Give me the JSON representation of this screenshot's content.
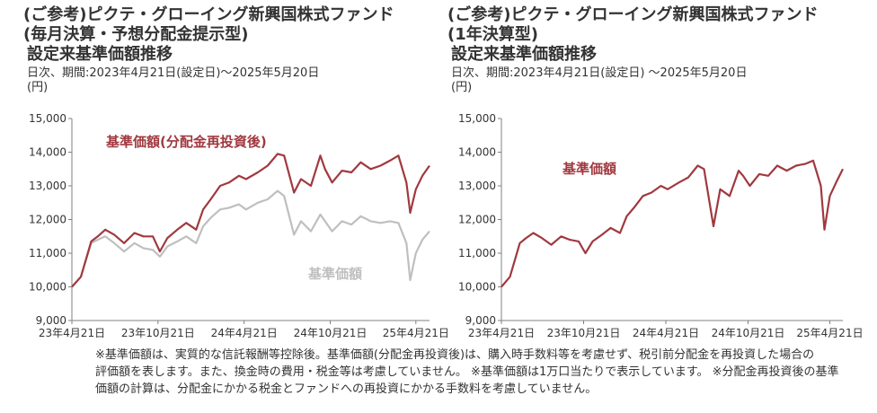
{
  "left": {
    "title1": "(ご参考)ピクテ・グローイング新興国株式ファンド",
    "title2": "(毎月決算・予想分配金提示型)",
    "title3": "設定来基準価額推移",
    "period": "日次、期間:2023年4月21日(設定日)～2025年5月20日",
    "unit": "(円)"
  },
  "right": {
    "title1": "(ご参考)ピクテ・グローイング新興国株式ファンド",
    "title2": "(1年決算型)",
    "title3": "設定来基準価額推移",
    "period": "日次、期間:2023年4月21日(設定日) ～2025年5月20日",
    "unit": "(円)"
  },
  "notes": [
    "※基準価額は、実質的な信託報酬等控除後。基準価額(分配金再投資後)は、購入時手数料等を考慮せず、税引前分配金を再投資した場合の",
    "評価額を表します。また、換金時の費用・税金等は考慮していません。 ※基準価額は1万口当たりで表示しています。 ※分配金再投資後の基準",
    "価額の計算は、分配金にかかる税金とファンドへの再投資にかかる手数料を考慮していません。"
  ],
  "colors": {
    "reinvested": "#A0393F",
    "nav": "#BFBFBF",
    "axis": "#808080"
  },
  "chart_data": [
    {
      "type": "line",
      "ylim": [
        9000,
        15000
      ],
      "y_ticks": [
        "9,000",
        "10,000",
        "11,000",
        "12,000",
        "13,000",
        "14,000",
        "15,000"
      ],
      "x_ticks": [
        "23年4月21日",
        "23年10月21日",
        "24年4月21日",
        "24年10月21日",
        "25年4月21日"
      ],
      "xlim": [
        "2023-04-21",
        "2025-05-20"
      ],
      "grid": false,
      "series": [
        {
          "name": "基準価額(分配金再投資後)",
          "color": "#A0393F",
          "x": [
            "2023-04-21",
            "2023-05-10",
            "2023-06-01",
            "2023-06-15",
            "2023-07-01",
            "2023-07-20",
            "2023-08-10",
            "2023-09-01",
            "2023-09-20",
            "2023-10-10",
            "2023-10-25",
            "2023-11-10",
            "2023-12-01",
            "2023-12-20",
            "2024-01-10",
            "2024-01-25",
            "2024-02-10",
            "2024-03-01",
            "2024-03-20",
            "2024-04-10",
            "2024-04-25",
            "2024-05-20",
            "2024-06-10",
            "2024-07-01",
            "2024-07-15",
            "2024-08-05",
            "2024-08-20",
            "2024-09-10",
            "2024-09-30",
            "2024-10-10",
            "2024-10-25",
            "2024-11-15",
            "2024-12-05",
            "2024-12-25",
            "2025-01-15",
            "2025-02-05",
            "2025-02-25",
            "2025-03-15",
            "2025-04-01",
            "2025-04-09",
            "2025-04-21",
            "2025-05-05",
            "2025-05-20"
          ],
          "y": [
            10000,
            10300,
            11350,
            11500,
            11700,
            11550,
            11300,
            11600,
            11500,
            11500,
            11050,
            11450,
            11700,
            11900,
            11700,
            12300,
            12600,
            13000,
            13100,
            13300,
            13200,
            13400,
            13600,
            13950,
            13900,
            12800,
            13200,
            13000,
            13900,
            13500,
            13100,
            13450,
            13400,
            13700,
            13500,
            13600,
            13750,
            13900,
            13100,
            12200,
            12900,
            13300,
            13600
          ]
        },
        {
          "name": "基準価額",
          "color": "#BFBFBF",
          "x": [
            "2023-04-21",
            "2023-05-10",
            "2023-06-01",
            "2023-06-15",
            "2023-07-01",
            "2023-07-20",
            "2023-08-10",
            "2023-09-01",
            "2023-09-20",
            "2023-10-10",
            "2023-10-25",
            "2023-11-10",
            "2023-12-01",
            "2023-12-20",
            "2024-01-10",
            "2024-01-25",
            "2024-02-10",
            "2024-03-01",
            "2024-03-20",
            "2024-04-10",
            "2024-04-25",
            "2024-05-20",
            "2024-06-10",
            "2024-07-01",
            "2024-07-15",
            "2024-08-05",
            "2024-08-20",
            "2024-09-10",
            "2024-09-30",
            "2024-10-10",
            "2024-10-25",
            "2024-11-15",
            "2024-12-05",
            "2024-12-25",
            "2025-01-15",
            "2025-02-05",
            "2025-02-25",
            "2025-03-15",
            "2025-04-01",
            "2025-04-09",
            "2025-04-21",
            "2025-05-05",
            "2025-05-20"
          ],
          "y": [
            10000,
            10300,
            11300,
            11400,
            11500,
            11300,
            11050,
            11300,
            11150,
            11100,
            10900,
            11200,
            11350,
            11500,
            11300,
            11800,
            12050,
            12300,
            12350,
            12450,
            12300,
            12500,
            12600,
            12850,
            12700,
            11550,
            11950,
            11650,
            12150,
            11950,
            11650,
            11950,
            11850,
            12100,
            11950,
            11900,
            11950,
            11900,
            11300,
            10200,
            11000,
            11400,
            11650
          ]
        }
      ],
      "annotations": [
        "基準価額(分配金再投資後)",
        "基準価額"
      ]
    },
    {
      "type": "line",
      "ylim": [
        9000,
        15000
      ],
      "y_ticks": [
        "9,000",
        "10,000",
        "11,000",
        "12,000",
        "13,000",
        "14,000",
        "15,000"
      ],
      "x_ticks": [
        "23年4月21日",
        "23年10月21日",
        "24年4月21日",
        "24年10月21日",
        "25年4月21日"
      ],
      "xlim": [
        "2023-04-21",
        "2025-05-20"
      ],
      "grid": false,
      "series": [
        {
          "name": "基準価額",
          "color": "#A0393F",
          "x": [
            "2023-04-21",
            "2023-05-10",
            "2023-06-01",
            "2023-06-15",
            "2023-07-01",
            "2023-07-20",
            "2023-08-10",
            "2023-09-01",
            "2023-09-20",
            "2023-10-10",
            "2023-10-25",
            "2023-11-10",
            "2023-12-01",
            "2023-12-20",
            "2024-01-10",
            "2024-01-25",
            "2024-02-10",
            "2024-03-01",
            "2024-03-20",
            "2024-04-10",
            "2024-04-25",
            "2024-05-20",
            "2024-06-10",
            "2024-07-01",
            "2024-07-15",
            "2024-08-05",
            "2024-08-20",
            "2024-09-10",
            "2024-09-30",
            "2024-10-10",
            "2024-10-25",
            "2024-11-15",
            "2024-12-05",
            "2024-12-25",
            "2025-01-15",
            "2025-02-05",
            "2025-02-25",
            "2025-03-15",
            "2025-04-01",
            "2025-04-09",
            "2025-04-21",
            "2025-05-05",
            "2025-05-20"
          ],
          "y": [
            10000,
            10300,
            11300,
            11450,
            11600,
            11450,
            11250,
            11500,
            11400,
            11350,
            11000,
            11350,
            11550,
            11750,
            11600,
            12100,
            12350,
            12700,
            12800,
            13000,
            12900,
            13100,
            13250,
            13600,
            13500,
            11800,
            12900,
            12700,
            13450,
            13300,
            13000,
            13350,
            13300,
            13600,
            13450,
            13600,
            13650,
            13750,
            13000,
            11700,
            12700,
            13100,
            13500
          ]
        }
      ],
      "annotations": [
        "基準価額"
      ]
    }
  ]
}
